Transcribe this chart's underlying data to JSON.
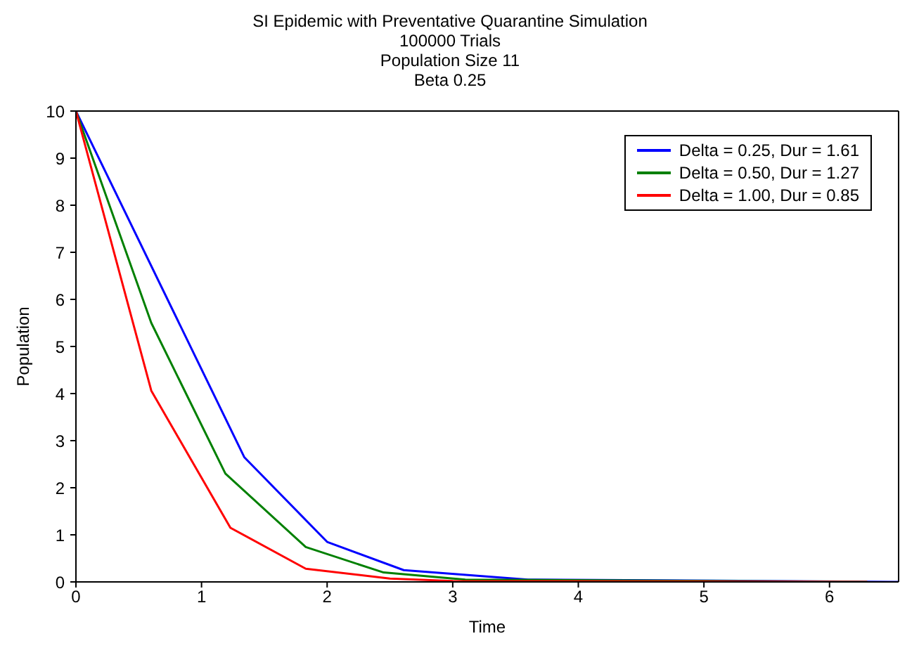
{
  "chart_data": {
    "type": "line",
    "title": "SI Epidemic with Preventative Quarantine Simulation\n100000 Trials\nPopulation Size 11\nBeta 0.25",
    "xlabel": "Time",
    "ylabel": "Population",
    "xlim": [
      0,
      6.55
    ],
    "xticks": [
      0,
      1,
      2,
      3,
      4,
      5,
      6
    ],
    "ylim": [
      0,
      10
    ],
    "yticks": [
      0,
      1,
      2,
      3,
      4,
      5,
      6,
      7,
      8,
      9,
      10
    ],
    "grid": false,
    "legend": "top right",
    "marker": "none",
    "line_style": "solid",
    "series": [
      {
        "name": "Delta = 0.25, Dur = 1.61",
        "color": "#0000ff",
        "x": [
          0,
          1.34,
          2,
          2.61,
          3.6,
          6.55
        ],
        "values": [
          10,
          2.65,
          0.85,
          0.25,
          0.05,
          0
        ]
      },
      {
        "name": "Delta = 0.50, Dur = 1.27",
        "color": "#008000",
        "x": [
          0,
          0.6,
          1.19,
          1.83,
          2.45,
          3.1,
          6.3
        ],
        "values": [
          10,
          5.5,
          2.3,
          0.74,
          0.2,
          0.05,
          0
        ]
      },
      {
        "name": "Delta = 1.00, Dur = 0.85",
        "color": "#ff0000",
        "x": [
          0,
          0.6,
          1.23,
          1.83,
          2.5,
          3,
          6.3
        ],
        "values": [
          10,
          4.06,
          1.15,
          0.28,
          0.07,
          0.02,
          0
        ]
      }
    ]
  }
}
